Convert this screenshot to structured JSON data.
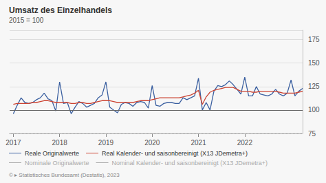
{
  "chart_data": {
    "type": "line",
    "title": "Umsatz des Einzelhandels",
    "subtitle": "2015 = 100",
    "footer": "© ▸ Statistisches Bundesamt (Destatis), 2023",
    "background_color": "#f7f7f7",
    "x": [
      2017,
      2017.0833333333333,
      2017.1666666666667,
      2017.25,
      2017.3333333333333,
      2017.4166666666667,
      2017.5,
      2017.5833333333333,
      2017.6666666666667,
      2017.75,
      2017.8333333333333,
      2017.9166666666667,
      2018,
      2018.0833333333333,
      2018.1666666666667,
      2018.25,
      2018.3333333333333,
      2018.4166666666667,
      2018.5,
      2018.5833333333333,
      2018.6666666666667,
      2018.75,
      2018.8333333333333,
      2018.9166666666667,
      2019,
      2019.0833333333333,
      2019.1666666666667,
      2019.25,
      2019.3333333333333,
      2019.4166666666667,
      2019.5,
      2019.5833333333333,
      2019.6666666666667,
      2019.75,
      2019.8333333333333,
      2019.9166666666667,
      2020,
      2020.0833333333333,
      2020.1666666666667,
      2020.25,
      2020.3333333333333,
      2020.4166666666667,
      2020.5,
      2020.5833333333333,
      2020.6666666666667,
      2020.75,
      2020.8333333333333,
      2020.9166666666667,
      2021,
      2021.0833333333333,
      2021.1666666666667,
      2021.25,
      2021.3333333333333,
      2021.4166666666667,
      2021.5,
      2021.5833333333333,
      2021.6666666666667,
      2021.75,
      2021.8333333333333,
      2021.9166666666667,
      2022,
      2022.0833333333333,
      2022.1666666666667,
      2022.25,
      2022.3333333333333,
      2022.4166666666667,
      2022.5,
      2022.5833333333333,
      2022.6666666666667,
      2022.75,
      2022.8333333333333,
      2022.9166666666667,
      2023,
      2023.0833333333333,
      2023.1666666666667,
      2023.25
    ],
    "series": [
      {
        "name": "Reale Originalwerte",
        "color": "#3a5fa0",
        "values": [
          96,
          105,
          113,
          108,
          107,
          108,
          111,
          113,
          118,
          112,
          110,
          99,
          130,
          107,
          108,
          96,
          103,
          109,
          107,
          103,
          105,
          107,
          113,
          116,
          130,
          103,
          100,
          97,
          106,
          108,
          107,
          104,
          108,
          109,
          108,
          102,
          126,
          105,
          104,
          107,
          108,
          108,
          107,
          107,
          113,
          111,
          113,
          115,
          134,
          100,
          108,
          100,
          120,
          126,
          125,
          127,
          131,
          127,
          122,
          117,
          135,
          115,
          115,
          125,
          117,
          116,
          115,
          117,
          122,
          117,
          115,
          118,
          132,
          115,
          120,
          123
        ]
      },
      {
        "name": "Real Kalender- und saisonbereinigt (X13 JDemetra+)",
        "color": "#cc4433",
        "values": [
          106,
          107,
          107,
          107,
          107,
          108,
          108,
          109,
          110,
          110,
          109,
          108,
          108,
          108,
          108,
          107,
          107,
          108,
          108,
          107,
          107,
          108,
          109,
          110,
          110,
          110,
          109,
          108,
          108,
          108,
          108,
          108,
          109,
          110,
          110,
          110,
          111,
          112,
          113,
          113,
          113,
          113,
          113,
          113,
          114,
          115,
          116,
          118,
          121,
          106,
          114,
          119,
          121,
          122,
          123,
          124,
          124,
          124,
          122,
          120,
          120,
          120,
          119,
          119,
          120,
          120,
          120,
          120,
          120,
          119,
          118,
          118,
          118,
          118,
          119,
          120
        ]
      },
      {
        "name": "Nominale Originalwerte",
        "color": "#aaaaaa",
        "values": [
          null,
          null,
          null,
          null,
          null,
          null,
          null,
          null,
          null,
          null,
          null,
          null,
          null,
          null,
          null,
          null,
          null,
          null,
          null,
          null,
          null,
          null,
          null,
          null,
          null,
          null,
          null,
          null,
          null,
          null,
          null,
          null,
          null,
          null,
          null,
          null,
          null,
          null,
          null,
          null,
          null,
          null,
          null,
          null,
          null,
          null,
          null,
          null,
          null,
          null,
          null,
          null,
          null,
          null,
          null,
          null,
          null,
          null,
          null,
          null,
          null,
          null,
          null,
          null,
          null,
          null,
          null,
          null,
          null,
          null,
          null,
          null,
          null,
          null,
          null,
          null
        ]
      },
      {
        "name": "Nominal Kalender- und saisonbereinigt (X13 JDemetra+)",
        "color": "#aaaaaa",
        "values": [
          null,
          null,
          null,
          null,
          null,
          null,
          null,
          null,
          null,
          null,
          null,
          null,
          null,
          null,
          null,
          null,
          null,
          null,
          null,
          null,
          null,
          null,
          null,
          null,
          null,
          null,
          null,
          null,
          null,
          null,
          null,
          null,
          null,
          null,
          null,
          null,
          null,
          null,
          null,
          null,
          null,
          null,
          null,
          null,
          null,
          null,
          null,
          null,
          null,
          null,
          null,
          null,
          null,
          null,
          null,
          null,
          null,
          null,
          null,
          null,
          null,
          null,
          null,
          null,
          null,
          null,
          null,
          null,
          null,
          null,
          null,
          null,
          null,
          null,
          null,
          null
        ]
      }
    ],
    "reference_line": 100,
    "xlim": [
      2016.92,
      2023.25
    ],
    "xticks": [
      2017,
      2018,
      2019,
      2020,
      2021,
      2022
    ],
    "ylim": [
      75,
      185
    ],
    "yticks": [
      75,
      100,
      125,
      150,
      175
    ],
    "grid": "y"
  }
}
